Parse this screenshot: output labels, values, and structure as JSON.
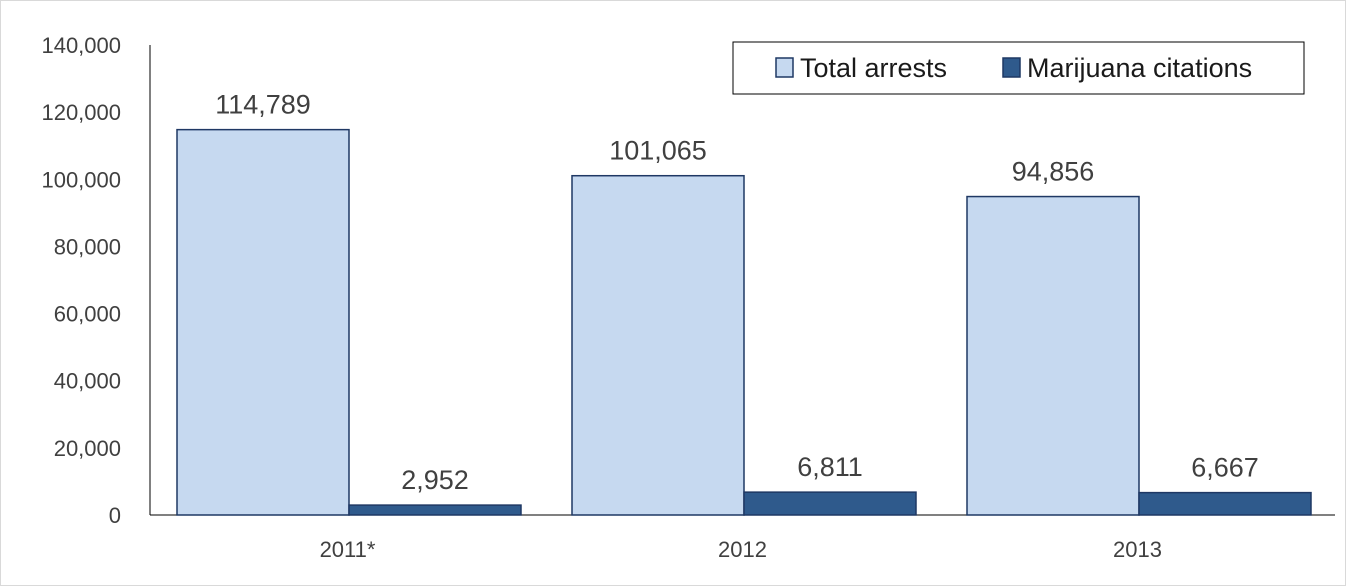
{
  "chart_data": {
    "type": "bar",
    "categories": [
      "2011*",
      "2012",
      "2013"
    ],
    "series": [
      {
        "name": "Total arrests",
        "values": [
          114789,
          101065,
          94856
        ],
        "color": "#c6d9f0",
        "stroke": "#1f3864"
      },
      {
        "name": "Marijuana citations",
        "values": [
          2952,
          6811,
          6667
        ],
        "color": "#2f5a8c",
        "stroke": "#1f3864"
      }
    ],
    "data_labels": [
      [
        "114,789",
        "101,065",
        "94,856"
      ],
      [
        "2,952",
        "6,811",
        "6,667"
      ]
    ],
    "y_ticks": [
      "0",
      "20,000",
      "40,000",
      "60,000",
      "80,000",
      "100,000",
      "120,000",
      "140,000"
    ],
    "ylim": [
      0,
      140000
    ],
    "title": "",
    "xlabel": "",
    "ylabel": "",
    "grid": false,
    "legend_position": "top-right"
  }
}
